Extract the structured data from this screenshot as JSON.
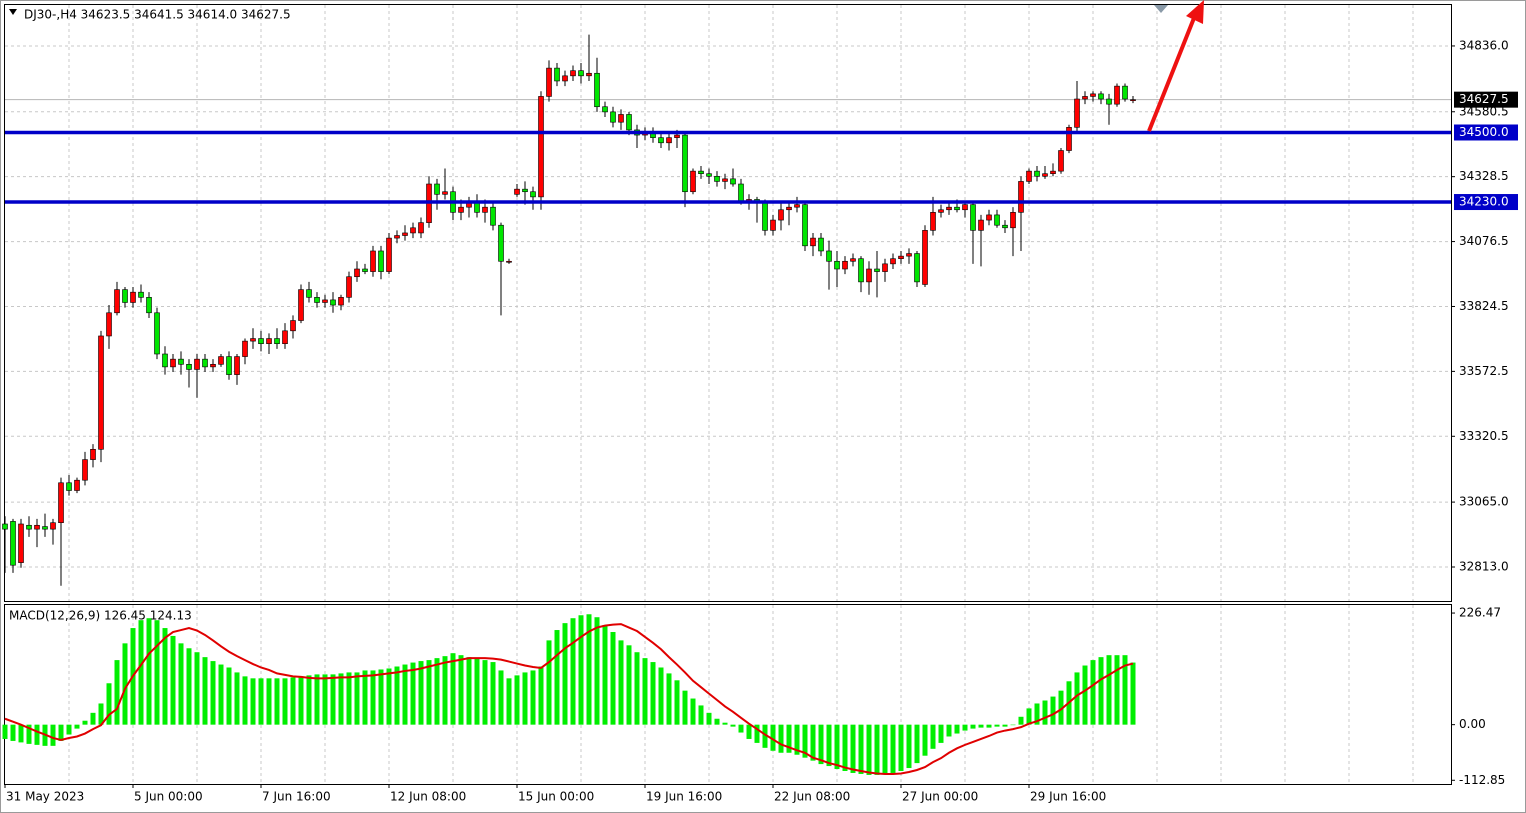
{
  "chart_data": {
    "type": "candlestick",
    "title": "DJ30-,H4  34623.5 34641.5 34614.0 34627.5",
    "categories": [
      "31 May 2023",
      null,
      null,
      null,
      null,
      null,
      null,
      null,
      null,
      null,
      null,
      null,
      null,
      null,
      null,
      null,
      "5 Jun 00:00",
      null,
      null,
      null,
      null,
      null,
      null,
      null,
      null,
      null,
      null,
      null,
      null,
      null,
      null,
      null,
      "7 Jun 16:00",
      null,
      null,
      null,
      null,
      null,
      null,
      null,
      null,
      null,
      null,
      null,
      null,
      null,
      null,
      null,
      "12 Jun 08:00",
      null,
      null,
      null,
      null,
      null,
      null,
      null,
      null,
      null,
      null,
      null,
      null,
      null,
      null,
      null,
      "15 Jun 00:00",
      null,
      null,
      null,
      null,
      null,
      null,
      null,
      null,
      null,
      null,
      null,
      null,
      null,
      null,
      null,
      "19 Jun 16:00",
      null,
      null,
      null,
      null,
      null,
      null,
      null,
      null,
      null,
      null,
      null,
      null,
      null,
      null,
      null,
      "22 Jun 08:00",
      null,
      null,
      null,
      null,
      null,
      null,
      null,
      null,
      null,
      null,
      null,
      null,
      null,
      null,
      null,
      "27 Jun 00:00",
      null,
      null,
      null,
      null,
      null,
      null,
      null,
      null,
      null,
      null,
      null,
      null,
      null,
      null,
      null,
      "29 Jun 16:00",
      null,
      null,
      null,
      null,
      null,
      null,
      null,
      null,
      null,
      null,
      null,
      null,
      null
    ],
    "candles": [
      [
        32980,
        33010,
        32790,
        32960
      ],
      [
        32990,
        33000,
        32790,
        32820
      ],
      [
        32830,
        33000,
        32810,
        32980
      ],
      [
        32975,
        33010,
        32930,
        32960
      ],
      [
        32960,
        33000,
        32890,
        32975
      ],
      [
        32970,
        33020,
        32930,
        32960
      ],
      [
        32960,
        33000,
        32900,
        32985
      ],
      [
        32985,
        33160,
        32740,
        33140
      ],
      [
        33140,
        33170,
        33090,
        33110
      ],
      [
        33110,
        33160,
        33100,
        33150
      ],
      [
        33150,
        33260,
        33130,
        33230
      ],
      [
        33230,
        33290,
        33200,
        33270
      ],
      [
        33270,
        33730,
        33220,
        33710
      ],
      [
        33710,
        33830,
        33660,
        33800
      ],
      [
        33800,
        33920,
        33790,
        33890
      ],
      [
        33890,
        33900,
        33820,
        33840
      ],
      [
        33840,
        33900,
        33820,
        33880
      ],
      [
        33880,
        33910,
        33840,
        33860
      ],
      [
        33860,
        33880,
        33780,
        33800
      ],
      [
        33800,
        33820,
        33620,
        33640
      ],
      [
        33640,
        33670,
        33560,
        33590
      ],
      [
        33590,
        33640,
        33570,
        33620
      ],
      [
        33620,
        33650,
        33560,
        33600
      ],
      [
        33600,
        33620,
        33510,
        33580
      ],
      [
        33580,
        33640,
        33470,
        33620
      ],
      [
        33620,
        33640,
        33570,
        33590
      ],
      [
        33590,
        33620,
        33570,
        33600
      ],
      [
        33600,
        33640,
        33590,
        33630
      ],
      [
        33630,
        33650,
        33540,
        33560
      ],
      [
        33560,
        33640,
        33520,
        33630
      ],
      [
        33630,
        33700,
        33600,
        33690
      ],
      [
        33690,
        33740,
        33660,
        33700
      ],
      [
        33700,
        33730,
        33650,
        33680
      ],
      [
        33680,
        33720,
        33640,
        33700
      ],
      [
        33700,
        33740,
        33660,
        33680
      ],
      [
        33680,
        33760,
        33660,
        33730
      ],
      [
        33730,
        33790,
        33700,
        33770
      ],
      [
        33770,
        33910,
        33760,
        33890
      ],
      [
        33890,
        33920,
        33840,
        33860
      ],
      [
        33860,
        33880,
        33820,
        33840
      ],
      [
        33840,
        33870,
        33820,
        33850
      ],
      [
        33850,
        33880,
        33800,
        33830
      ],
      [
        33830,
        33870,
        33810,
        33860
      ],
      [
        33860,
        33960,
        33840,
        33940
      ],
      [
        33940,
        34000,
        33920,
        33970
      ],
      [
        33970,
        33990,
        33950,
        33960
      ],
      [
        33960,
        34060,
        33940,
        34040
      ],
      [
        34040,
        34060,
        33930,
        33960
      ],
      [
        33960,
        34110,
        33950,
        34090
      ],
      [
        34090,
        34120,
        34070,
        34100
      ],
      [
        34100,
        34140,
        34080,
        34110
      ],
      [
        34110,
        34150,
        34090,
        34130
      ],
      [
        34110,
        34170,
        34090,
        34150
      ],
      [
        34150,
        34330,
        34130,
        34300
      ],
      [
        34300,
        34320,
        34200,
        34260
      ],
      [
        34260,
        34360,
        34240,
        34270
      ],
      [
        34270,
        34290,
        34160,
        34190
      ],
      [
        34190,
        34240,
        34160,
        34210
      ],
      [
        34210,
        34250,
        34170,
        34230
      ],
      [
        34230,
        34260,
        34170,
        34190
      ],
      [
        34190,
        34240,
        34150,
        34210
      ],
      [
        34210,
        34230,
        34120,
        34140
      ],
      [
        34140,
        34150,
        33790,
        34000
      ],
      [
        34000,
        34010,
        33990,
        34000
      ],
      [
        34260,
        34300,
        34250,
        34280
      ],
      [
        34280,
        34310,
        34220,
        34270
      ],
      [
        34270,
        34290,
        34200,
        34250
      ],
      [
        34250,
        34660,
        34200,
        34640
      ],
      [
        34640,
        34780,
        34620,
        34750
      ],
      [
        34750,
        34770,
        34680,
        34700
      ],
      [
        34700,
        34740,
        34680,
        34720
      ],
      [
        34720,
        34760,
        34700,
        34740
      ],
      [
        34740,
        34770,
        34690,
        34720
      ],
      [
        34720,
        34880,
        34700,
        34730
      ],
      [
        34730,
        34790,
        34580,
        34600
      ],
      [
        34600,
        34620,
        34560,
        34580
      ],
      [
        34580,
        34600,
        34520,
        34540
      ],
      [
        34540,
        34590,
        34510,
        34570
      ],
      [
        34570,
        34580,
        34490,
        34510
      ],
      [
        34510,
        34530,
        34440,
        34490
      ],
      [
        34490,
        34520,
        34470,
        34500
      ],
      [
        34500,
        34520,
        34460,
        34480
      ],
      [
        34480,
        34500,
        34440,
        34460
      ],
      [
        34460,
        34500,
        34430,
        34480
      ],
      [
        34480,
        34510,
        34440,
        34490
      ],
      [
        34490,
        34500,
        34210,
        34270
      ],
      [
        34270,
        34360,
        34260,
        34350
      ],
      [
        34350,
        34370,
        34320,
        34340
      ],
      [
        34340,
        34360,
        34300,
        34330
      ],
      [
        34330,
        34350,
        34290,
        34310
      ],
      [
        34310,
        34340,
        34280,
        34320
      ],
      [
        34320,
        34360,
        34290,
        34300
      ],
      [
        34300,
        34320,
        34220,
        34230
      ],
      [
        34230,
        34260,
        34200,
        34240
      ],
      [
        34240,
        34250,
        34150,
        34230
      ],
      [
        34230,
        34240,
        34100,
        34120
      ],
      [
        34120,
        34180,
        34100,
        34160
      ],
      [
        34160,
        34230,
        34120,
        34200
      ],
      [
        34200,
        34230,
        34140,
        34210
      ],
      [
        34210,
        34250,
        34190,
        34220
      ],
      [
        34220,
        34230,
        34040,
        34060
      ],
      [
        34060,
        34110,
        34020,
        34090
      ],
      [
        34090,
        34110,
        34020,
        34040
      ],
      [
        34040,
        34080,
        33890,
        34000
      ],
      [
        34000,
        34040,
        33900,
        33970
      ],
      [
        33970,
        34020,
        33950,
        34000
      ],
      [
        34000,
        34030,
        33980,
        34010
      ],
      [
        34010,
        34020,
        33880,
        33920
      ],
      [
        33920,
        34000,
        33870,
        33970
      ],
      [
        33970,
        34040,
        33860,
        33960
      ],
      [
        33960,
        34010,
        33920,
        33990
      ],
      [
        33990,
        34030,
        33970,
        34010
      ],
      [
        34010,
        34040,
        33990,
        34020
      ],
      [
        34020,
        34050,
        33990,
        34030
      ],
      [
        34030,
        34040,
        33900,
        33920
      ],
      [
        33910,
        34140,
        33900,
        34120
      ],
      [
        34120,
        34250,
        34100,
        34190
      ],
      [
        34190,
        34220,
        34170,
        34200
      ],
      [
        34200,
        34230,
        34180,
        34210
      ],
      [
        34210,
        34240,
        34190,
        34200
      ],
      [
        34200,
        34230,
        34170,
        34220
      ],
      [
        34220,
        34230,
        33990,
        34120
      ],
      [
        34120,
        34180,
        33980,
        34160
      ],
      [
        34160,
        34200,
        34140,
        34180
      ],
      [
        34180,
        34200,
        34130,
        34140
      ],
      [
        34140,
        34160,
        34110,
        34130
      ],
      [
        34130,
        34210,
        34020,
        34190
      ],
      [
        34190,
        34330,
        34040,
        34310
      ],
      [
        34310,
        34360,
        34300,
        34350
      ],
      [
        34350,
        34370,
        34310,
        34330
      ],
      [
        34330,
        34370,
        34320,
        34340
      ],
      [
        34340,
        34380,
        34330,
        34350
      ],
      [
        34350,
        34440,
        34340,
        34430
      ],
      [
        34430,
        34530,
        34420,
        34520
      ],
      [
        34520,
        34700,
        34500,
        34630
      ],
      [
        34630,
        34660,
        34610,
        34640
      ],
      [
        34640,
        34660,
        34620,
        34650
      ],
      [
        34650,
        34660,
        34610,
        34630
      ],
      [
        34630,
        34650,
        34530,
        34610
      ],
      [
        34610,
        34690,
        34600,
        34680
      ],
      [
        34680,
        34690,
        34620,
        34630
      ],
      [
        34623.5,
        34641.5,
        34614,
        34627.5
      ]
    ],
    "ylim": [
      32681,
      34995
    ],
    "yticks": [
      {
        "value": 34836,
        "label": "34836.0"
      },
      {
        "value": 34580.5,
        "label": "34580.5"
      },
      {
        "value": 34328.5,
        "label": "34328.5"
      },
      {
        "value": 34076.5,
        "label": "34076.5"
      },
      {
        "value": 33824.5,
        "label": "33824.5"
      },
      {
        "value": 33572.5,
        "label": "33572.5"
      },
      {
        "value": 33320.5,
        "label": "33320.5"
      },
      {
        "value": 33065,
        "label": "33065.0"
      },
      {
        "value": 32813,
        "label": "32813.0"
      }
    ],
    "levels": [
      {
        "value": 34500,
        "label": "34500.0"
      },
      {
        "value": 34230,
        "label": "34230.0"
      }
    ],
    "last_price": {
      "value": 34627.5,
      "label": "34627.5"
    },
    "grid": true,
    "colors": {
      "up": "#ff0000",
      "down": "#00e600",
      "level": "#0000c8"
    },
    "macd": {
      "title": "MACD(12,26,9) 126.45 124.13",
      "histogram": [
        -29,
        -33,
        -36,
        -39,
        -41,
        -43,
        -43,
        -33,
        -20,
        -8,
        8,
        24,
        43,
        84,
        131,
        165,
        196,
        212,
        216,
        212,
        196,
        180,
        165,
        155,
        147,
        137,
        129,
        122,
        116,
        106,
        98,
        94,
        94,
        94,
        94,
        94,
        96,
        98,
        100,
        102,
        102,
        102,
        104,
        106,
        106,
        110,
        110,
        112,
        114,
        118,
        122,
        126,
        129,
        131,
        135,
        139,
        145,
        141,
        137,
        135,
        131,
        127,
        110,
        94,
        100,
        106,
        110,
        118,
        171,
        192,
        206,
        216,
        222,
        224,
        218,
        202,
        188,
        171,
        161,
        147,
        135,
        127,
        116,
        104,
        90,
        69,
        53,
        39,
        24,
        12,
        4,
        -4,
        -16,
        -29,
        -37,
        -47,
        -53,
        -57,
        -57,
        -61,
        -67,
        -73,
        -80,
        -84,
        -90,
        -94,
        -98,
        -100,
        -102,
        -102,
        -100,
        -98,
        -94,
        -88,
        -78,
        -63,
        -49,
        -37,
        -24,
        -18,
        -12,
        -8,
        -6,
        -6,
        -4,
        -4,
        0,
        16,
        33,
        43,
        49,
        57,
        69,
        88,
        106,
        120,
        131,
        137,
        141,
        141,
        141,
        126
      ],
      "signal": [
        12,
        6,
        0,
        -7,
        -14,
        -20,
        -27,
        -31,
        -27,
        -24,
        -18,
        -9,
        -1,
        20,
        32,
        73,
        99,
        121,
        144,
        160,
        176,
        188,
        192,
        196,
        191,
        182,
        171,
        159,
        148,
        139,
        131,
        123,
        116,
        111,
        104,
        101,
        98,
        97,
        95,
        94,
        94,
        95,
        96,
        96,
        98,
        99,
        100,
        102,
        104,
        106,
        109,
        111,
        114,
        118,
        122,
        126,
        129,
        132,
        135,
        135,
        135,
        134,
        132,
        128,
        124,
        120,
        117,
        115,
        127,
        141,
        155,
        166,
        178,
        189,
        197,
        201,
        203,
        204,
        197,
        190,
        178,
        166,
        153,
        137,
        122,
        106,
        89,
        76,
        63,
        50,
        37,
        26,
        14,
        2,
        -9,
        -20,
        -30,
        -40,
        -46,
        -52,
        -57,
        -67,
        -72,
        -78,
        -82,
        -87,
        -91,
        -94,
        -97,
        -99,
        -100,
        -100,
        -99,
        -96,
        -92,
        -86,
        -76,
        -68,
        -57,
        -48,
        -41,
        -35,
        -29,
        -23,
        -16,
        -12,
        -9,
        -5,
        2,
        7,
        14,
        21,
        31,
        45,
        59,
        69,
        80,
        92,
        101,
        111,
        120,
        124
      ],
      "ylim": [
        -120.4,
        242.8
      ],
      "yticks": [
        226.47,
        {
          "value": 0,
          "label": "0.00"
        },
        -112.85
      ],
      "histogram_color": "#00ee00",
      "signal_color": "#e00000"
    }
  }
}
